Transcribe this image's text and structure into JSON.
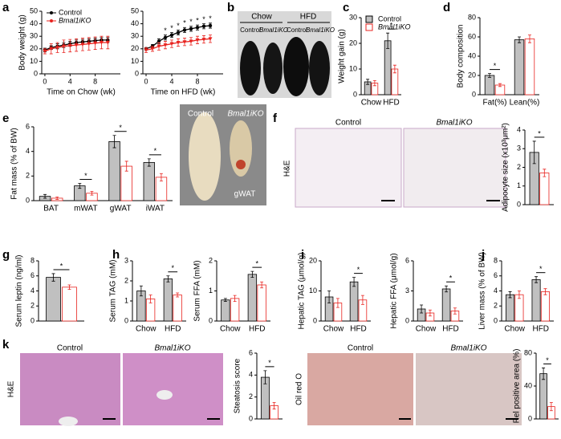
{
  "panel_labels": [
    "a",
    "b",
    "c",
    "d",
    "e",
    "f",
    "g",
    "h",
    "i",
    "j",
    "k"
  ],
  "images": {
    "b": {
      "labels": [
        "Chow",
        "HFD",
        "Control",
        "Bmal1iKO",
        "Control",
        "Bmal1iKO"
      ]
    },
    "e": {
      "labels": [
        "Control",
        "Bmal1iKO",
        "gWAT"
      ]
    },
    "f": {
      "labels": [
        "H&E",
        "Control",
        "Bmal1iKO"
      ]
    },
    "k": {
      "labels": [
        "H&E",
        "Control",
        "Bmal1iKO",
        "Oil red O",
        "Control",
        "Bmal1iKO"
      ]
    }
  },
  "chart_data": [
    {
      "type": "line",
      "ylabel": "Body weight (g)",
      "xlabel": "Time on Chow (wk)",
      "x": [
        0,
        1,
        2,
        3,
        4,
        5,
        6,
        7,
        8,
        9,
        10
      ],
      "xlim": [
        -0.5,
        12
      ],
      "xticks": [
        0,
        4,
        8
      ],
      "ylim": [
        0,
        50
      ],
      "yticks": [
        0,
        10,
        20,
        30,
        40,
        50
      ],
      "legend": "top-left",
      "series": [
        {
          "name": "Control",
          "color": "#000000",
          "values": [
            19,
            21,
            22,
            23,
            24,
            25,
            25.5,
            26,
            26.5,
            27,
            27
          ],
          "errors": [
            1.5,
            1.5,
            2,
            2,
            2,
            2,
            2,
            2,
            2,
            2,
            2
          ]
        },
        {
          "name": "Bmal1iKO",
          "color": "#e8231f",
          "values": [
            18,
            20,
            21,
            22,
            22.5,
            23,
            23.5,
            24,
            24.5,
            25,
            25
          ],
          "errors": [
            2,
            4,
            4,
            5,
            5,
            5,
            5,
            5,
            5,
            5,
            5
          ]
        }
      ]
    },
    {
      "type": "line",
      "xlabel": "Time on HFD (wk)",
      "x": [
        0,
        1,
        2,
        3,
        4,
        5,
        6,
        7,
        8,
        9,
        10
      ],
      "xlim": [
        -0.5,
        12
      ],
      "xticks": [
        0,
        4,
        8
      ],
      "ylim": [
        0,
        50
      ],
      "yticks": [
        0,
        10,
        20,
        30,
        40,
        50
      ],
      "series": [
        {
          "name": "Control",
          "color": "#000000",
          "values": [
            20,
            22,
            26,
            29,
            31,
            33,
            35,
            36,
            37,
            38,
            38.5
          ],
          "errors": [
            1,
            1.5,
            2,
            2,
            2,
            2,
            2,
            2,
            2,
            2,
            2
          ]
        },
        {
          "name": "Bmal1iKO",
          "color": "#e8231f",
          "values": [
            19,
            20,
            22,
            23,
            24,
            25,
            25.5,
            26,
            27,
            27.5,
            28
          ],
          "errors": [
            2,
            2,
            3,
            3,
            3,
            3,
            3,
            3,
            3,
            3,
            3
          ]
        }
      ],
      "annotations": [
        {
          "text": "*",
          "x": 3
        },
        {
          "text": "*",
          "x": 4
        },
        {
          "text": "*",
          "x": 5
        },
        {
          "text": "*",
          "x": 6
        },
        {
          "text": "*",
          "x": 7
        },
        {
          "text": "*",
          "x": 8
        },
        {
          "text": "*",
          "x": 9
        },
        {
          "text": "*",
          "x": 10
        }
      ]
    },
    {
      "type": "bar",
      "ylabel": "Weight gain (g)",
      "categories": [
        "Chow",
        "HFD"
      ],
      "ylim": [
        0,
        30
      ],
      "yticks": [
        0,
        10,
        20,
        30
      ],
      "legend": "top-left",
      "series": [
        {
          "name": "Control",
          "color": "#000000",
          "fill": "#c0c0c0",
          "values": [
            5,
            21
          ],
          "errors": [
            1,
            3
          ]
        },
        {
          "name": "Bmal1iKO",
          "color": "#e8231f",
          "fill": "#ffffff",
          "values": [
            4.5,
            10
          ],
          "errors": [
            1,
            1.5
          ]
        }
      ],
      "annotations": [
        {
          "text": "*",
          "category": "HFD"
        }
      ]
    },
    {
      "type": "bar",
      "ylabel": "Body composition",
      "categories": [
        "Fat(%)",
        "Lean(%)"
      ],
      "ylim": [
        0,
        80
      ],
      "yticks": [
        0,
        20,
        40,
        60,
        80
      ],
      "series": [
        {
          "name": "Control",
          "color": "#000000",
          "fill": "#c0c0c0",
          "values": [
            20,
            57
          ],
          "errors": [
            2,
            3
          ]
        },
        {
          "name": "Bmal1iKO",
          "color": "#e8231f",
          "fill": "#ffffff",
          "values": [
            10,
            58
          ],
          "errors": [
            1.5,
            4
          ]
        }
      ],
      "annotations": [
        {
          "text": "*",
          "category": "Fat(%)"
        }
      ]
    },
    {
      "type": "bar",
      "ylabel": "Fat mass (% of BW)",
      "categories": [
        "BAT",
        "mWAT",
        "gWAT",
        "iWAT"
      ],
      "ylim": [
        0,
        6
      ],
      "yticks": [
        0,
        2,
        4,
        6
      ],
      "series": [
        {
          "name": "Control",
          "color": "#000000",
          "fill": "#c0c0c0",
          "values": [
            0.35,
            1.2,
            4.8,
            3.1
          ],
          "errors": [
            0.15,
            0.2,
            0.5,
            0.3
          ]
        },
        {
          "name": "Bmal1iKO",
          "color": "#e8231f",
          "fill": "#ffffff",
          "values": [
            0.2,
            0.6,
            2.8,
            1.9
          ],
          "errors": [
            0.1,
            0.15,
            0.4,
            0.3
          ]
        }
      ],
      "annotations": [
        {
          "text": "*",
          "category": "mWAT"
        },
        {
          "text": "*",
          "category": "gWAT"
        },
        {
          "text": "*",
          "category": "iWAT"
        }
      ]
    },
    {
      "type": "bar",
      "ylabel": "Adipocyte size (x10³μm²)",
      "categories": [
        null
      ],
      "ylim": [
        0,
        4
      ],
      "yticks": [
        0,
        1,
        2,
        3,
        4
      ],
      "series": [
        {
          "name": "Control",
          "color": "#000000",
          "fill": "#c0c0c0",
          "values": [
            2.8
          ],
          "errors": [
            0.6
          ]
        },
        {
          "name": "Bmal1iKO",
          "color": "#e8231f",
          "fill": "#ffffff",
          "values": [
            1.7
          ],
          "errors": [
            0.2
          ]
        }
      ],
      "annotations": [
        {
          "text": "*"
        }
      ]
    },
    {
      "type": "bar",
      "ylabel": "Serum leptin (ng/ml)",
      "categories": [
        null
      ],
      "ylim": [
        0,
        8
      ],
      "yticks": [
        0,
        2,
        4,
        6,
        8
      ],
      "series": [
        {
          "name": "Control",
          "color": "#000000",
          "fill": "#c0c0c0",
          "values": [
            5.8
          ],
          "errors": [
            0.5
          ]
        },
        {
          "name": "Bmal1iKO",
          "color": "#e8231f",
          "fill": "#ffffff",
          "values": [
            4.5
          ],
          "errors": [
            0.3
          ]
        }
      ],
      "annotations": [
        {
          "text": "*"
        }
      ]
    },
    {
      "type": "bar",
      "ylabel": "Serum TAG (mM)",
      "categories": [
        "Chow",
        "HFD"
      ],
      "ylim": [
        0,
        3
      ],
      "yticks": [
        0,
        1,
        2,
        3
      ],
      "series": [
        {
          "name": "Control",
          "color": "#000000",
          "fill": "#c0c0c0",
          "values": [
            1.5,
            2.1
          ],
          "errors": [
            0.25,
            0.15
          ]
        },
        {
          "name": "Bmal1iKO",
          "color": "#e8231f",
          "fill": "#ffffff",
          "values": [
            1.1,
            1.3
          ],
          "errors": [
            0.2,
            0.1
          ]
        }
      ],
      "annotations": [
        {
          "text": "*",
          "category": "HFD"
        }
      ]
    },
    {
      "type": "bar",
      "ylabel": "Serum FFA (mM)",
      "categories": [
        "Chow",
        "HFD"
      ],
      "ylim": [
        0,
        2
      ],
      "yticks": [
        0,
        1,
        2
      ],
      "series": [
        {
          "name": "Control",
          "color": "#000000",
          "fill": "#c0c0c0",
          "values": [
            0.7,
            1.55
          ],
          "errors": [
            0.05,
            0.1
          ]
        },
        {
          "name": "Bmal1iKO",
          "color": "#e8231f",
          "fill": "#ffffff",
          "values": [
            0.75,
            1.2
          ],
          "errors": [
            0.1,
            0.1
          ]
        }
      ],
      "annotations": [
        {
          "text": "*",
          "category": "HFD"
        }
      ]
    },
    {
      "type": "bar",
      "ylabel": "Hepatic TAG (μmol/g)",
      "categories": [
        "Chow",
        "HFD"
      ],
      "ylim": [
        0,
        20
      ],
      "yticks": [
        0,
        10,
        20
      ],
      "series": [
        {
          "name": "Control",
          "color": "#000000",
          "fill": "#c0c0c0",
          "values": [
            8,
            13
          ],
          "errors": [
            2,
            1.5
          ]
        },
        {
          "name": "Bmal1iKO",
          "color": "#e8231f",
          "fill": "#ffffff",
          "values": [
            6,
            7
          ],
          "errors": [
            1.5,
            1.5
          ]
        }
      ],
      "annotations": [
        {
          "text": "*",
          "category": "HFD"
        }
      ]
    },
    {
      "type": "bar",
      "ylabel": "Hepatic FFA (μmol/g)",
      "categories": [
        "Chow",
        "HFD"
      ],
      "ylim": [
        0,
        6
      ],
      "yticks": [
        0,
        3,
        6
      ],
      "series": [
        {
          "name": "Control",
          "color": "#000000",
          "fill": "#c0c0c0",
          "values": [
            1.2,
            3.2
          ],
          "errors": [
            0.4,
            0.3
          ]
        },
        {
          "name": "Bmal1iKO",
          "color": "#e8231f",
          "fill": "#ffffff",
          "values": [
            0.8,
            1.0
          ],
          "errors": [
            0.3,
            0.3
          ]
        }
      ],
      "annotations": [
        {
          "text": "*",
          "category": "HFD"
        }
      ]
    },
    {
      "type": "bar",
      "ylabel": "Liver mass (% of BW)",
      "categories": [
        "Chow",
        "HFD"
      ],
      "ylim": [
        0,
        8
      ],
      "yticks": [
        0,
        2,
        4,
        6,
        8
      ],
      "series": [
        {
          "name": "Control",
          "color": "#000000",
          "fill": "#c0c0c0",
          "values": [
            3.5,
            5.5
          ],
          "errors": [
            0.4,
            0.4
          ]
        },
        {
          "name": "Bmal1iKO",
          "color": "#e8231f",
          "fill": "#ffffff",
          "values": [
            3.5,
            3.9
          ],
          "errors": [
            0.5,
            0.4
          ]
        }
      ],
      "annotations": [
        {
          "text": "*",
          "category": "HFD"
        }
      ]
    },
    {
      "type": "bar",
      "ylabel": "Steatosis score",
      "categories": [
        null
      ],
      "ylim": [
        0,
        6
      ],
      "yticks": [
        0,
        2,
        4,
        6
      ],
      "series": [
        {
          "name": "Control",
          "color": "#000000",
          "fill": "#c0c0c0",
          "values": [
            3.8
          ],
          "errors": [
            0.6
          ]
        },
        {
          "name": "Bmal1iKO",
          "color": "#e8231f",
          "fill": "#ffffff",
          "values": [
            1.2
          ],
          "errors": [
            0.3
          ]
        }
      ],
      "annotations": [
        {
          "text": "*"
        }
      ]
    },
    {
      "type": "bar",
      "ylabel": "Rel positive area (%)",
      "categories": [
        null
      ],
      "ylim": [
        0,
        80
      ],
      "yticks": [
        0,
        40,
        80
      ],
      "series": [
        {
          "name": "Control",
          "color": "#000000",
          "fill": "#c0c0c0",
          "values": [
            55
          ],
          "errors": [
            7
          ]
        },
        {
          "name": "Bmal1iKO",
          "color": "#e8231f",
          "fill": "#ffffff",
          "values": [
            15
          ],
          "errors": [
            5
          ]
        }
      ],
      "annotations": [
        {
          "text": "*"
        }
      ]
    }
  ]
}
